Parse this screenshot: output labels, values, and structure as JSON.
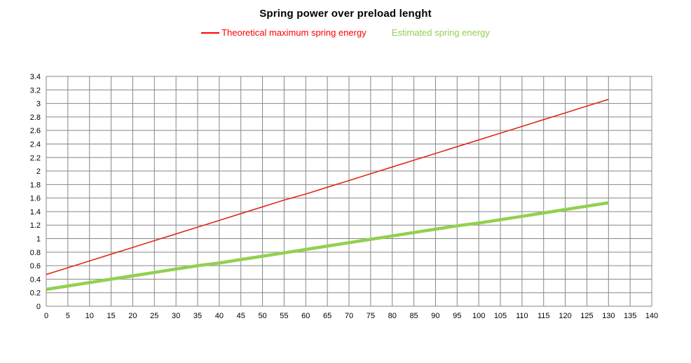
{
  "chart_data": {
    "type": "line",
    "title": "Spring power over preload lenght",
    "xlabel": "",
    "ylabel": "",
    "x": [
      0,
      5,
      10,
      15,
      20,
      25,
      30,
      35,
      40,
      45,
      50,
      55,
      60,
      65,
      70,
      75,
      80,
      85,
      90,
      95,
      100,
      105,
      110,
      115,
      120,
      125,
      130
    ],
    "series": [
      {
        "name": "Theoretical maximum spring energy",
        "color": "#df2b1c",
        "line_width": 1.6,
        "values": [
          0.47,
          0.57,
          0.67,
          0.77,
          0.87,
          0.97,
          1.07,
          1.17,
          1.27,
          1.37,
          1.47,
          1.57,
          1.66,
          1.76,
          1.86,
          1.96,
          2.06,
          2.16,
          2.26,
          2.36,
          2.46,
          2.56,
          2.66,
          2.76,
          2.86,
          2.96,
          3.06
        ]
      },
      {
        "name": "Estimated spring energy",
        "color": "#92d050",
        "line_width": 4.5,
        "values": [
          0.25,
          0.3,
          0.35,
          0.4,
          0.45,
          0.5,
          0.55,
          0.6,
          0.64,
          0.69,
          0.74,
          0.79,
          0.84,
          0.89,
          0.94,
          0.99,
          1.04,
          1.09,
          1.14,
          1.19,
          1.23,
          1.28,
          1.33,
          1.38,
          1.43,
          1.48,
          1.53
        ]
      }
    ],
    "xlim": [
      0,
      140
    ],
    "xtick_step": 5,
    "ylim": [
      0,
      3.4
    ],
    "ytick_step": 0.2,
    "grid": true,
    "gridline_color": "#868686",
    "background_color": "#ffffff",
    "legend_position": "top-center"
  },
  "legend": {
    "items": [
      {
        "label": "Theoretical maximum spring energy",
        "color": "#ff0000",
        "marker": "line"
      },
      {
        "label": "Estimated spring energy",
        "color": "#92d050",
        "marker": "none"
      }
    ]
  }
}
